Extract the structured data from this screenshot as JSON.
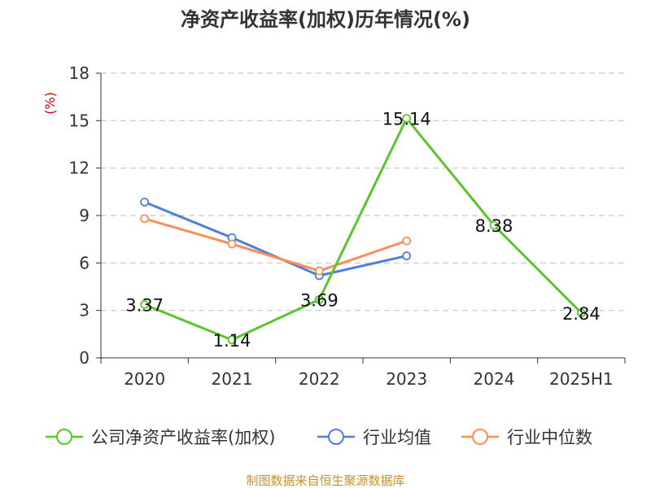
{
  "colors": {
    "roe": "#5cc42c",
    "industry_avg": "#4f7fd8",
    "industry_median": "#f98e5a"
  },
  "chart_data": {
    "type": "line",
    "title": "净资产收益率(加权)历年情况(%)",
    "ylabel": "(%)",
    "categories": [
      "2020",
      "2021",
      "2022",
      "2023",
      "2024",
      "2025H1"
    ],
    "ylim": [
      0,
      18
    ],
    "yticks": [
      "0",
      "3",
      "6",
      "9",
      "12",
      "15",
      "18"
    ],
    "grid": true,
    "legend_position": "bottom",
    "series": [
      {
        "name": "公司净资产收益率(加权)",
        "values": [
          3.37,
          1.14,
          3.69,
          15.14,
          8.38,
          2.84
        ],
        "labels": [
          "3.37",
          "1.14",
          "3.69",
          "15.14",
          "8.38",
          "2.84"
        ],
        "color_key": "roe"
      },
      {
        "name": "行业均值",
        "values": [
          9.85,
          7.6,
          5.2,
          6.45,
          null,
          null
        ],
        "color_key": "industry_avg"
      },
      {
        "name": "行业中位数",
        "values": [
          8.8,
          7.2,
          5.5,
          7.4,
          null,
          null
        ],
        "color_key": "industry_median"
      }
    ]
  },
  "footer": {
    "source": "制图数据来自恒生聚源数据库"
  }
}
